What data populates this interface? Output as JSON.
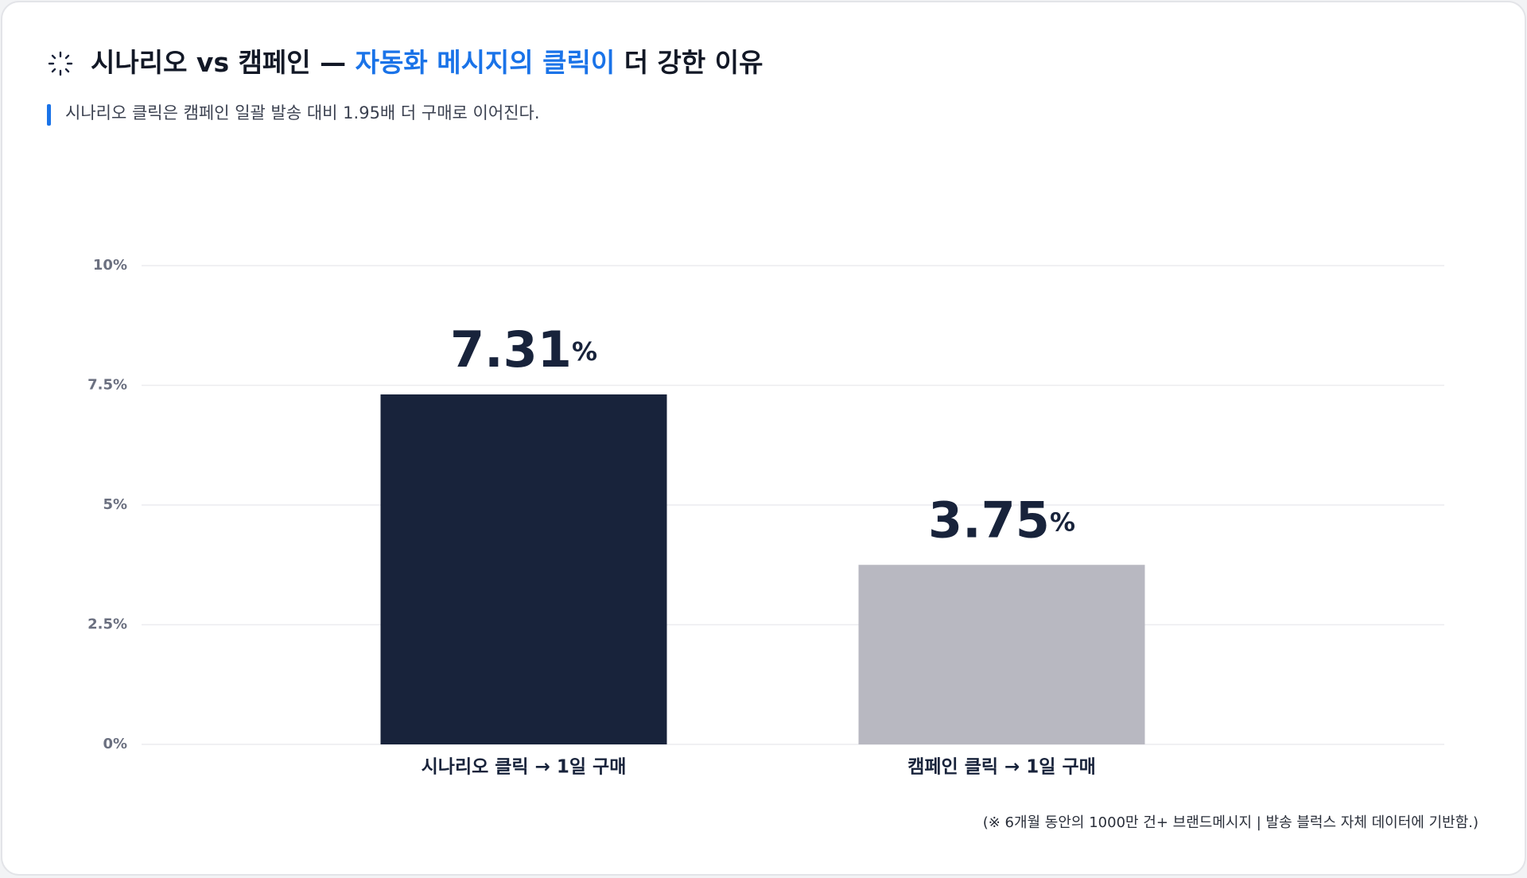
{
  "chart_data": {
    "type": "bar",
    "title": {
      "lead": "시나리오 vs 캠페인 — ",
      "highlight": "자동화 메시지의 클릭이",
      "tail": " 더 강한 이유"
    },
    "subtitle": "시나리오 클릭은 캠페인 일괄 발송 대비 1.95배 더 구매로 이어진다.",
    "categories": [
      "시나리오 클릭 → 1일 구매",
      "캠페인 클릭 → 1일 구매"
    ],
    "values": [
      7.31,
      3.75
    ],
    "value_labels": [
      "7.31%",
      "3.75%"
    ],
    "colors": [
      "#18233b",
      "#b8b8c1"
    ],
    "ylim": [
      0,
      10
    ],
    "yticks": [
      {
        "value": 0,
        "label": "0%"
      },
      {
        "value": 2.5,
        "label": "2.5%"
      },
      {
        "value": 5,
        "label": "5%"
      },
      {
        "value": 7.5,
        "label": "7.5%"
      },
      {
        "value": 10,
        "label": "10%"
      }
    ],
    "grid": true,
    "footnote": "(※ 6개월 동안의 1000만 건+ 브랜드메시지 | 발송 블럭스 자체 데이터에 기반함.)"
  }
}
